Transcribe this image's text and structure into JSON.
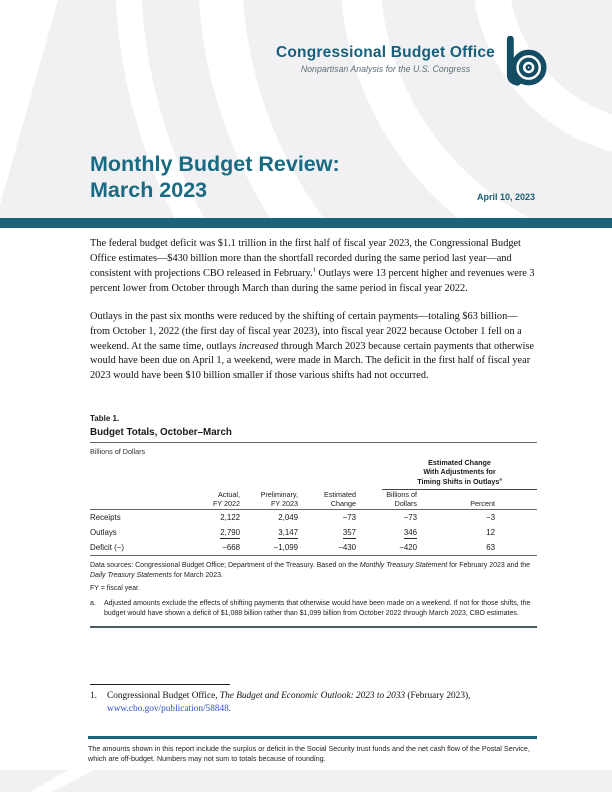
{
  "colors": {
    "accent": "#1b6379",
    "brand_teal": "#17607b",
    "logo_teal": "#124d63",
    "header_gray": "#f1f1f4",
    "link_blue": "#3050c8"
  },
  "brand": {
    "title": "Congressional Budget Office",
    "tagline": "Nonpartisan Analysis for the U.S. Congress",
    "logo": "cbo-concentric-circles-logo"
  },
  "title_block": {
    "line1": "Monthly Budget Review:",
    "line2": "March 2023",
    "date": "April 10, 2023"
  },
  "body": {
    "para1_parts": [
      {
        "t": "The federal budget deficit was $1.1 trillion in the first half of fiscal year 2023, the Congressional Budget Office estimates—$430 billion more than the shortfall recorded during the same period last year—and consistent with projections CBO released in February."
      },
      {
        "t": "1",
        "style": "sup"
      },
      {
        "t": " Outlays were 13 percent higher and revenues were 3 percent lower from October through March than during the same period in fiscal year 2022."
      }
    ],
    "para2_parts": [
      {
        "t": "Outlays in the past six months were reduced by the shifting of certain payments—totaling $63 billion—from October 1, 2022 (the first day of fiscal year 2023), into fiscal year 2022 because October 1 fell on a weekend. At the same time, outlays "
      },
      {
        "t": "increased",
        "style": "italic"
      },
      {
        "t": " through March 2023 because certain payments that otherwise would have been due on April 1, a weekend, were made in March. The deficit in the first half of fiscal year 2023 would have been $10 billion smaller if those various shifts had not occurred."
      }
    ]
  },
  "table": {
    "label": "Table 1.",
    "title": "Budget Totals, October–March",
    "unit": "Billions of Dollars",
    "spanner": {
      "line1": "Estimated Change",
      "line2": "With Adjustments for",
      "line3_parts": [
        {
          "t": "Timing Shifts in Outlays"
        },
        {
          "t": "a",
          "style": "sup"
        }
      ]
    },
    "columns": [
      {
        "line1": "Actual,",
        "line2": "FY 2022"
      },
      {
        "line1": "Preliminary,",
        "line2": "FY 2023"
      },
      {
        "line1": "Estimated",
        "line2": "Change"
      },
      {
        "line1": "Billions of",
        "line2": "Dollars"
      },
      {
        "line1": "",
        "line2": "Percent"
      }
    ],
    "rows": [
      {
        "label": "Receipts",
        "values": [
          "2,122",
          "2,049",
          "−73",
          "−73",
          "−3"
        ]
      },
      {
        "label": "Outlays",
        "values": [
          "2,790",
          "3,147",
          "357",
          "346",
          "12"
        ]
      },
      {
        "label": "Deficit (−)",
        "values": [
          "−668",
          "−1,099",
          "−430",
          "−420",
          "63"
        ]
      }
    ],
    "notes": {
      "data_sources_parts": [
        {
          "t": "Data sources: Congressional Budget Office; Department of the Treasury. Based on the "
        },
        {
          "t": "Monthly Treasury Statement",
          "style": "italic"
        },
        {
          "t": " for February 2023 and the "
        },
        {
          "t": "Daily Treasury Statements",
          "style": "italic"
        },
        {
          "t": " for March 2023."
        }
      ],
      "fy_note": "FY = fiscal year.",
      "note_a_label": "a.",
      "note_a_text": "Adjusted amounts exclude the effects of shifting payments that otherwise would have been made on a weekend. If not for those shifts, the budget would have shown a deficit of $1,088 billion rather than $1,099 billion from October 2022 through March 2023, CBO estimates."
    }
  },
  "footnote": {
    "marker": "1.",
    "line1_parts": [
      {
        "t": "Congressional Budget Office, "
      },
      {
        "t": "The Budget and Economic Outlook: 2023 to 2033",
        "style": "italic"
      },
      {
        "t": " (February 2023),"
      }
    ],
    "line2_parts": [
      {
        "t": "www.cbo.gov/publication/58848.",
        "style": "link"
      }
    ]
  },
  "footer": {
    "text": "The amounts shown in this report include the surplus or deficit in the Social Security trust funds and the net cash flow of the Postal Service, which are off-budget. Numbers may not sum to totals because of rounding."
  }
}
